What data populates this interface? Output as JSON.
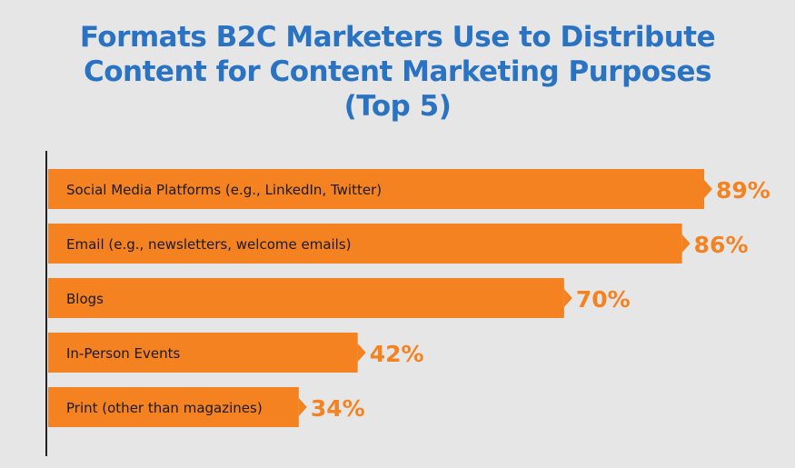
{
  "title_lines": [
    "Formats B2C Marketers Use to Distribute",
    "Content for Content Marketing Purposes",
    "(Top 5)"
  ],
  "colors": {
    "bar": "#f58220",
    "label_text": "#f58220",
    "title": "#2a73c2",
    "axis": "#222222",
    "background": "#e6e6e7"
  },
  "chart_data": {
    "type": "bar",
    "orientation": "horizontal",
    "title": "Formats B2C Marketers Use to Distribute Content for Content Marketing Purposes (Top 5)",
    "categories": [
      "Social Media Platforms (e.g., LinkedIn, Twitter)",
      "Email (e.g., newsletters, welcome emails)",
      "Blogs",
      "In-Person Events",
      "Print (other than magazines)"
    ],
    "values": [
      89,
      86,
      70,
      42,
      34
    ],
    "value_labels": [
      "89%",
      "86%",
      "70%",
      "42%",
      "34%"
    ],
    "unit": "%",
    "xlim": [
      0,
      100
    ],
    "grid": false,
    "legend": "none"
  }
}
